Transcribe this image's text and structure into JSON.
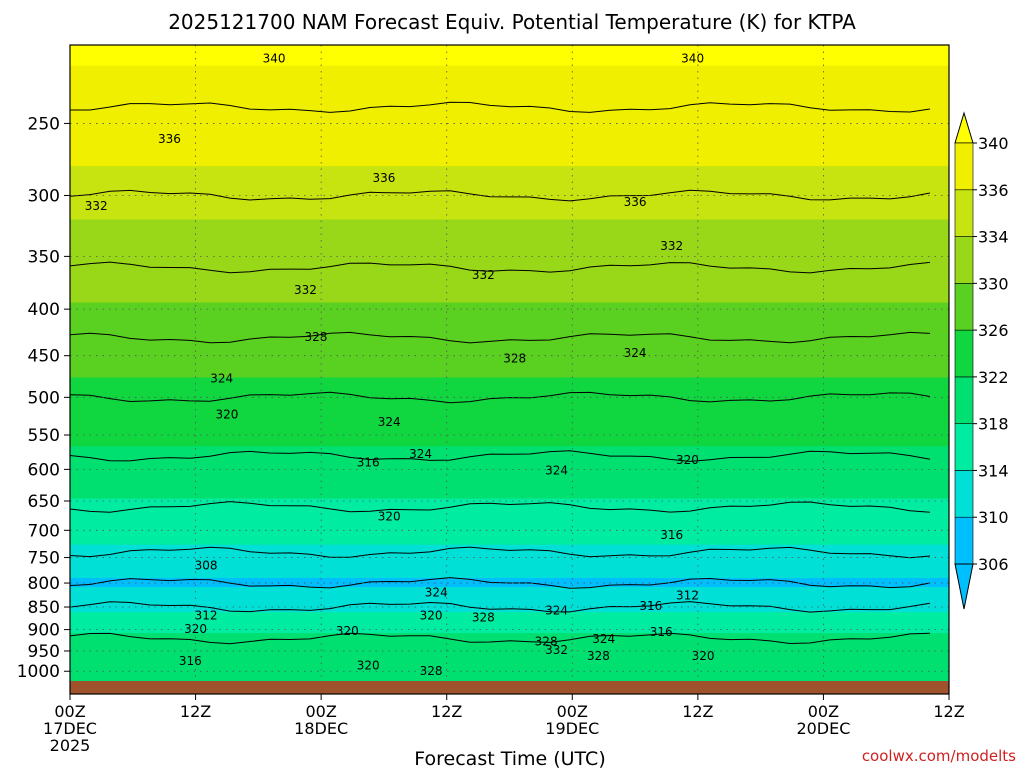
{
  "title": "2025121700 NAM Forecast Equiv. Potential Temperature (K) for KTPA",
  "watermark": "coolwx.com/modelts",
  "chart_data": {
    "type": "heatmap",
    "title": "2025121700 NAM Forecast Equiv. Potential Temperature (K) for KTPA",
    "xlabel": "Forecast Time (UTC)",
    "ylabel": "",
    "y_scale": "log",
    "y_reversed": true,
    "y_range": [
      205,
      1025
    ],
    "y_ticks": [
      250,
      300,
      350,
      400,
      450,
      500,
      550,
      600,
      650,
      700,
      750,
      800,
      850,
      900,
      950,
      1000
    ],
    "y_tick_labels": [
      "250",
      "300",
      "350",
      "400",
      "450",
      "500",
      "550",
      "600",
      "650",
      "700",
      "750",
      "800",
      "850",
      "900",
      "950",
      "1000"
    ],
    "x_range_hours": [
      0,
      84
    ],
    "x_ticks": [
      {
        "hour": 0,
        "lines": [
          "00Z",
          "17DEC",
          "2025"
        ]
      },
      {
        "hour": 12,
        "lines": [
          "12Z"
        ]
      },
      {
        "hour": 24,
        "lines": [
          "00Z",
          "18DEC"
        ]
      },
      {
        "hour": 36,
        "lines": [
          "12Z"
        ]
      },
      {
        "hour": 48,
        "lines": [
          "00Z",
          "19DEC"
        ]
      },
      {
        "hour": 60,
        "lines": [
          "12Z"
        ]
      },
      {
        "hour": 72,
        "lines": [
          "00Z",
          "20DEC"
        ]
      },
      {
        "hour": 84,
        "lines": [
          "12Z"
        ]
      }
    ],
    "grid": true,
    "colorbar": {
      "levels": [
        306,
        310,
        314,
        318,
        322,
        326,
        330,
        334,
        336,
        340
      ],
      "labels": [
        "306",
        "310",
        "314",
        "318",
        "322",
        "326",
        "330",
        "334",
        "336",
        "340"
      ],
      "colors": [
        "#00bfff",
        "#00e0d6",
        "#00eca0",
        "#00e070",
        "#10d640",
        "#5ad020",
        "#98d818",
        "#c8e410",
        "#f0ef00",
        "#ffff00"
      ]
    },
    "fill_levels_by_pressure": [
      {
        "p": 205,
        "value": 341
      },
      {
        "p": 240,
        "value": 338
      },
      {
        "p": 300,
        "value": 335
      },
      {
        "p": 360,
        "value": 332
      },
      {
        "p": 430,
        "value": 328
      },
      {
        "p": 500,
        "value": 325
      },
      {
        "p": 580,
        "value": 321
      },
      {
        "p": 660,
        "value": 317
      },
      {
        "p": 740,
        "value": 313
      },
      {
        "p": 800,
        "value": 309
      },
      {
        "p": 850,
        "value": 313
      },
      {
        "p": 920,
        "value": 319
      },
      {
        "p": 1025,
        "value": 322
      }
    ],
    "contour_labels": [
      {
        "text": "340",
        "h": 19.5,
        "p": 212
      },
      {
        "text": "340",
        "h": 59.5,
        "p": 212
      },
      {
        "text": "336",
        "h": 9.5,
        "p": 260
      },
      {
        "text": "336",
        "h": 30,
        "p": 287
      },
      {
        "text": "336",
        "h": 54,
        "p": 305
      },
      {
        "text": "332",
        "h": 2.5,
        "p": 308
      },
      {
        "text": "332",
        "h": 22.5,
        "p": 381
      },
      {
        "text": "332",
        "h": 39.5,
        "p": 367
      },
      {
        "text": "332",
        "h": 57.5,
        "p": 341
      },
      {
        "text": "328",
        "h": 23.5,
        "p": 429
      },
      {
        "text": "328",
        "h": 42.5,
        "p": 453
      },
      {
        "text": "324",
        "h": 14.5,
        "p": 477
      },
      {
        "text": "324",
        "h": 54,
        "p": 447
      },
      {
        "text": "320",
        "h": 15,
        "p": 522
      },
      {
        "text": "324",
        "h": 30.5,
        "p": 532
      },
      {
        "text": "316",
        "h": 28.5,
        "p": 590
      },
      {
        "text": "324",
        "h": 33.5,
        "p": 577
      },
      {
        "text": "324",
        "h": 46.5,
        "p": 602
      },
      {
        "text": "320",
        "h": 59,
        "p": 586
      },
      {
        "text": "320",
        "h": 30.5,
        "p": 676
      },
      {
        "text": "316",
        "h": 57.5,
        "p": 708
      },
      {
        "text": "308",
        "h": 13,
        "p": 765
      },
      {
        "text": "324",
        "h": 35,
        "p": 819
      },
      {
        "text": "312",
        "h": 13,
        "p": 868
      },
      {
        "text": "320",
        "h": 34.5,
        "p": 868
      },
      {
        "text": "328",
        "h": 39.5,
        "p": 873
      },
      {
        "text": "324",
        "h": 46.5,
        "p": 858
      },
      {
        "text": "316",
        "h": 55.5,
        "p": 848
      },
      {
        "text": "312",
        "h": 59,
        "p": 826
      },
      {
        "text": "320",
        "h": 12,
        "p": 899
      },
      {
        "text": "320",
        "h": 26.5,
        "p": 903
      },
      {
        "text": "324",
        "h": 51,
        "p": 922
      },
      {
        "text": "316",
        "h": 56.5,
        "p": 906
      },
      {
        "text": "328",
        "h": 45.5,
        "p": 928
      },
      {
        "text": "332",
        "h": 46.5,
        "p": 948
      },
      {
        "text": "328",
        "h": 50.5,
        "p": 962
      },
      {
        "text": "320",
        "h": 60.5,
        "p": 962
      },
      {
        "text": "316",
        "h": 11.5,
        "p": 975
      },
      {
        "text": "320",
        "h": 28.5,
        "p": 985
      },
      {
        "text": "328",
        "h": 34.5,
        "p": 1000
      }
    ]
  }
}
